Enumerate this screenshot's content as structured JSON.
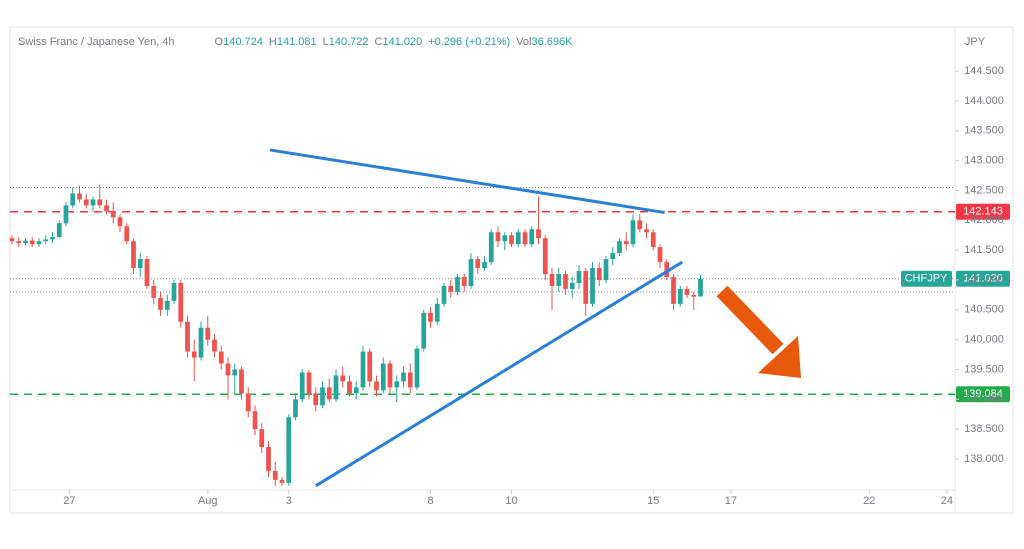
{
  "chart_data": {
    "type": "candlestick",
    "legend_title": "Swiss Franc / Japanese Yen, 4h",
    "legend_items": [
      {
        "label": "O",
        "value": "140.724"
      },
      {
        "label": "H",
        "value": "141.081"
      },
      {
        "label": "L",
        "value": "140.722"
      },
      {
        "label": "C",
        "value": "141.020"
      },
      {
        "label": "",
        "value": "+0.296 (+0.21%)"
      },
      {
        "label": "Vol",
        "value": "36.696K"
      }
    ],
    "currency": "JPY",
    "up_color": "#26a69a",
    "down_color": "#ef5350",
    "x": [
      0,
      1,
      2,
      3,
      4,
      5,
      6,
      7,
      8,
      9,
      10,
      11,
      12,
      13,
      14,
      15,
      16,
      17,
      18,
      19,
      20,
      21,
      22,
      23,
      24,
      25,
      26,
      27,
      28,
      29,
      30,
      31,
      32,
      33,
      34,
      35,
      36,
      37,
      38,
      39,
      40,
      41,
      42,
      43,
      44,
      45,
      46,
      47,
      48,
      49,
      50,
      51,
      52,
      53,
      54,
      55,
      56,
      57,
      58,
      59,
      60,
      61,
      62,
      63,
      64,
      65,
      66,
      67,
      68,
      69,
      70,
      71,
      72,
      73,
      74,
      75,
      76,
      77,
      78,
      79,
      80,
      81,
      82,
      83,
      84,
      85,
      86,
      87,
      88,
      89,
      90,
      91,
      92,
      93,
      94,
      95,
      96,
      97,
      98,
      99,
      100,
      101,
      102
    ],
    "ohlc": [
      [
        141.7,
        141.75,
        141.6,
        141.65
      ],
      [
        141.65,
        141.72,
        141.55,
        141.62
      ],
      [
        141.62,
        141.7,
        141.58,
        141.66
      ],
      [
        141.66,
        141.72,
        141.55,
        141.6
      ],
      [
        141.6,
        141.7,
        141.55,
        141.65
      ],
      [
        141.65,
        141.75,
        141.6,
        141.68
      ],
      [
        141.68,
        141.8,
        141.62,
        141.72
      ],
      [
        141.72,
        142.0,
        141.7,
        141.95
      ],
      [
        141.95,
        142.3,
        141.9,
        142.25
      ],
      [
        142.25,
        142.55,
        142.2,
        142.45
      ],
      [
        142.45,
        142.58,
        142.3,
        142.35
      ],
      [
        142.35,
        142.45,
        142.2,
        142.25
      ],
      [
        142.25,
        142.4,
        142.15,
        142.35
      ],
      [
        142.35,
        142.6,
        142.2,
        142.25
      ],
      [
        142.25,
        142.35,
        142.1,
        142.15
      ],
      [
        142.15,
        142.3,
        141.95,
        142.05
      ],
      [
        142.05,
        142.1,
        141.8,
        141.9
      ],
      [
        141.9,
        141.95,
        141.6,
        141.65
      ],
      [
        141.65,
        141.7,
        141.1,
        141.2
      ],
      [
        141.2,
        141.45,
        141.05,
        141.35
      ],
      [
        141.35,
        141.4,
        140.85,
        140.9
      ],
      [
        140.9,
        141.0,
        140.6,
        140.7
      ],
      [
        140.7,
        140.8,
        140.4,
        140.5
      ],
      [
        140.5,
        140.75,
        140.4,
        140.65
      ],
      [
        140.65,
        141.0,
        140.6,
        140.95
      ],
      [
        140.95,
        141.0,
        140.2,
        140.3
      ],
      [
        140.3,
        140.4,
        139.7,
        139.8
      ],
      [
        139.8,
        140.0,
        139.3,
        139.7
      ],
      [
        139.7,
        140.3,
        139.65,
        140.2
      ],
      [
        140.2,
        140.4,
        139.9,
        140.0
      ],
      [
        140.0,
        140.1,
        139.7,
        139.8
      ],
      [
        139.8,
        139.9,
        139.5,
        139.6
      ],
      [
        139.6,
        139.7,
        139.0,
        139.4
      ],
      [
        139.4,
        139.6,
        139.1,
        139.5
      ],
      [
        139.5,
        139.55,
        139.0,
        139.1
      ],
      [
        139.1,
        139.2,
        138.7,
        138.8
      ],
      [
        138.8,
        138.9,
        138.4,
        138.5
      ],
      [
        138.5,
        138.6,
        138.1,
        138.2
      ],
      [
        138.2,
        138.3,
        137.7,
        137.8
      ],
      [
        137.8,
        137.95,
        137.55,
        137.65
      ],
      [
        137.65,
        137.7,
        137.55,
        137.6
      ],
      [
        137.6,
        138.75,
        137.55,
        138.7
      ],
      [
        138.7,
        139.1,
        138.65,
        139.0
      ],
      [
        139.0,
        139.5,
        138.95,
        139.45
      ],
      [
        139.45,
        139.5,
        139.0,
        139.1
      ],
      [
        139.1,
        139.2,
        138.8,
        138.9
      ],
      [
        138.9,
        139.3,
        138.85,
        139.2
      ],
      [
        139.2,
        139.35,
        138.95,
        139.0
      ],
      [
        139.0,
        139.5,
        138.95,
        139.4
      ],
      [
        139.4,
        139.55,
        139.2,
        139.3
      ],
      [
        139.3,
        139.4,
        139.05,
        139.1
      ],
      [
        139.1,
        139.3,
        139.0,
        139.2
      ],
      [
        139.2,
        139.9,
        139.15,
        139.8
      ],
      [
        139.8,
        139.85,
        139.2,
        139.3
      ],
      [
        139.3,
        139.4,
        139.05,
        139.15
      ],
      [
        139.15,
        139.7,
        139.1,
        139.6
      ],
      [
        139.6,
        139.65,
        139.1,
        139.2
      ],
      [
        139.2,
        139.4,
        138.95,
        139.3
      ],
      [
        139.3,
        139.55,
        139.2,
        139.45
      ],
      [
        139.45,
        139.6,
        139.1,
        139.2
      ],
      [
        139.2,
        139.9,
        139.15,
        139.85
      ],
      [
        139.85,
        140.5,
        139.8,
        140.45
      ],
      [
        140.45,
        140.55,
        140.2,
        140.3
      ],
      [
        140.3,
        140.7,
        140.25,
        140.6
      ],
      [
        140.6,
        140.95,
        140.55,
        140.9
      ],
      [
        140.9,
        141.0,
        140.7,
        140.8
      ],
      [
        140.8,
        141.1,
        140.75,
        141.05
      ],
      [
        141.05,
        141.1,
        140.8,
        140.9
      ],
      [
        140.9,
        141.45,
        140.85,
        141.35
      ],
      [
        141.35,
        141.4,
        141.1,
        141.2
      ],
      [
        141.2,
        141.4,
        141.15,
        141.3
      ],
      [
        141.3,
        141.85,
        141.25,
        141.8
      ],
      [
        141.8,
        141.9,
        141.55,
        141.65
      ],
      [
        141.65,
        141.8,
        141.5,
        141.75
      ],
      [
        141.75,
        141.8,
        141.55,
        141.6
      ],
      [
        141.6,
        141.85,
        141.55,
        141.8
      ],
      [
        141.8,
        141.85,
        141.55,
        141.6
      ],
      [
        141.6,
        141.9,
        141.55,
        141.85
      ],
      [
        141.85,
        142.4,
        141.6,
        141.7
      ],
      [
        141.7,
        141.75,
        141.0,
        141.1
      ],
      [
        141.1,
        141.2,
        140.5,
        140.9
      ],
      [
        140.9,
        141.2,
        140.8,
        141.1
      ],
      [
        141.1,
        141.15,
        140.75,
        140.85
      ],
      [
        140.85,
        141.05,
        140.7,
        140.95
      ],
      [
        140.95,
        141.25,
        140.85,
        141.15
      ],
      [
        141.15,
        141.2,
        140.4,
        140.6
      ],
      [
        140.6,
        141.3,
        140.55,
        141.2
      ],
      [
        141.2,
        141.3,
        140.9,
        141.0
      ],
      [
        141.0,
        141.4,
        140.95,
        141.35
      ],
      [
        141.35,
        141.55,
        141.25,
        141.45
      ],
      [
        141.45,
        141.7,
        141.4,
        141.65
      ],
      [
        141.65,
        141.8,
        141.5,
        141.6
      ],
      [
        141.6,
        142.1,
        141.55,
        142.0
      ],
      [
        142.0,
        142.1,
        141.8,
        141.85
      ],
      [
        141.85,
        141.95,
        141.7,
        141.8
      ],
      [
        141.8,
        141.85,
        141.5,
        141.55
      ],
      [
        141.55,
        141.6,
        141.2,
        141.3
      ],
      [
        141.3,
        141.35,
        141.0,
        141.05
      ],
      [
        141.05,
        141.1,
        140.5,
        140.6
      ],
      [
        140.6,
        140.9,
        140.55,
        140.85
      ],
      [
        140.85,
        140.9,
        140.7,
        140.75
      ],
      [
        140.75,
        140.8,
        140.5,
        140.72
      ],
      [
        140.724,
        141.081,
        140.722,
        141.02
      ]
    ],
    "xlim": [
      0,
      140
    ],
    "xticks": [
      {
        "value": 8.5,
        "label": "27"
      },
      {
        "value": 29,
        "label": "Aug"
      },
      {
        "value": 41,
        "label": "3"
      },
      {
        "value": 62,
        "label": "8"
      },
      {
        "value": 74,
        "label": "10"
      },
      {
        "value": 95,
        "label": "15"
      },
      {
        "value": 106.5,
        "label": "17"
      },
      {
        "value": 127,
        "label": "22"
      },
      {
        "value": 138.5,
        "label": "24"
      }
    ],
    "ylim": [
      137.48,
      145.19
    ],
    "yticks": [
      {
        "value": 138,
        "label": "138.000"
      },
      {
        "value": 138.5,
        "label": "138.500"
      },
      {
        "value": 139,
        "label": "139.000"
      },
      {
        "value": 139.5,
        "label": "139.500"
      },
      {
        "value": 140,
        "label": "140.000"
      },
      {
        "value": 140.5,
        "label": "140.500"
      },
      {
        "value": 141,
        "label": "141.000"
      },
      {
        "value": 141.5,
        "label": "141.500"
      },
      {
        "value": 142,
        "label": "142.000"
      },
      {
        "value": 142.5,
        "label": "142.500"
      },
      {
        "value": 143,
        "label": "143.000"
      },
      {
        "value": 143.5,
        "label": "143.500"
      },
      {
        "value": 144,
        "label": "144.000"
      },
      {
        "value": 144.5,
        "label": "144.500"
      }
    ],
    "dotted_levels": [
      142.55,
      141.02,
      140.8
    ],
    "levels": [
      {
        "value": 142.143,
        "color": "#f23645"
      },
      {
        "value": 139.084,
        "color": "#22ab4a"
      }
    ],
    "price_tag": {
      "symbol": "CHFJPY",
      "value": "141.020",
      "color": "#26a69a"
    },
    "trendlines": [
      {
        "x": [
          38.2,
          96.7
        ],
        "y": [
          143.18,
          142.13
        ],
        "color": "#2a7fd6"
      },
      {
        "x": [
          45.0,
          99.3
        ],
        "y": [
          137.55,
          141.3
        ],
        "color": "#2a7fd6"
      }
    ]
  }
}
